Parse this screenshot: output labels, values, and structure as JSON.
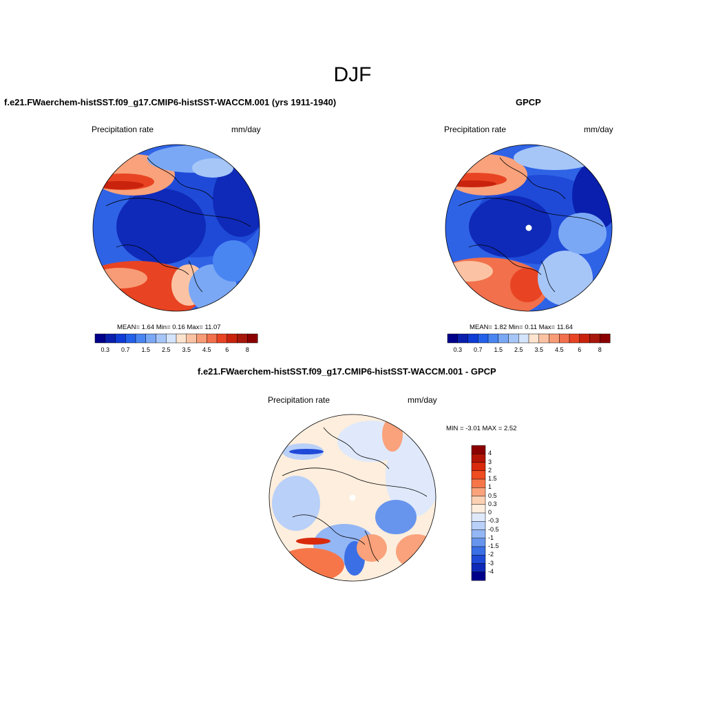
{
  "figure_title": "DJF",
  "panels": {
    "model": {
      "title": "f.e21.FWaerchem-histSST.f09_g17.CMIP6-histSST-WACCM.001 (yrs 1911-1940)",
      "left_label": "Precipitation rate",
      "right_label": "mm/day",
      "stats": "MEAN=   1.64   Min=    0.16   Max=   11.07"
    },
    "obs": {
      "title": "GPCP",
      "left_label": "Precipitation rate",
      "right_label": "mm/day",
      "stats": "MEAN=   1.82   Min=    0.11   Max=   11.64"
    },
    "diff": {
      "title": "f.e21.FWaerchem-histSST.f09_g17.CMIP6-histSST-WACCM.001 - GPCP",
      "left_label": "Precipitation rate",
      "right_label": "mm/day",
      "stats": "MIN =   -3.01  MAX =    2.52"
    }
  },
  "colorbar_main": {
    "colors": [
      "#00008b",
      "#0a1fae",
      "#0f3bd6",
      "#2361eb",
      "#4a86f2",
      "#7aa8f5",
      "#a6c6f8",
      "#d3e4fb",
      "#fde4cf",
      "#fbc3a3",
      "#f79c76",
      "#f2704c",
      "#e84423",
      "#c9230d",
      "#a8170b",
      "#8b0000"
    ],
    "ticks": [
      "0.3",
      "0.7",
      "1.5",
      "2.5",
      "3.5",
      "4.5",
      "6",
      "8"
    ]
  },
  "colorbar_diff": {
    "colors_top_to_bottom": [
      "#8b0000",
      "#b31404",
      "#d92a0c",
      "#ef4c1f",
      "#f6764a",
      "#f9a27b",
      "#fcd0b3",
      "#fdeedd",
      "#dfe9fb",
      "#b9d0f8",
      "#93b6f4",
      "#6795ee",
      "#3b6fe6",
      "#1f4ad8",
      "#0f2ab8",
      "#00008b"
    ],
    "ticks_top_to_bottom": [
      "4",
      "3",
      "2",
      "1.5",
      "1",
      "0.5",
      "0.3",
      "0",
      "-0.3",
      "-0.5",
      "-1",
      "-1.5",
      "-2",
      "-3",
      "-4"
    ]
  }
}
